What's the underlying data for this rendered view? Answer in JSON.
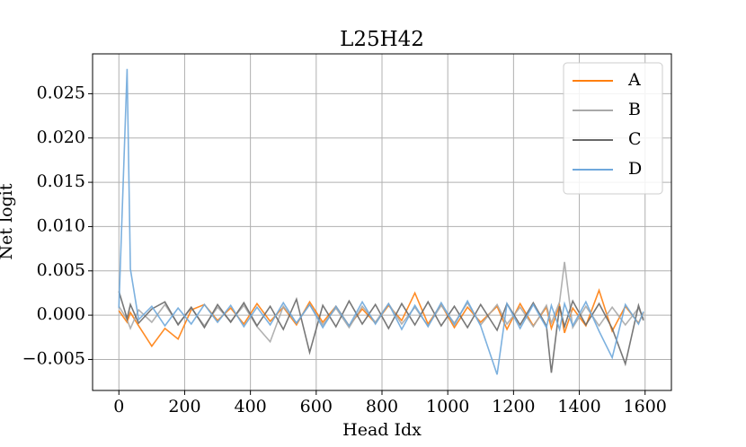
{
  "chart_data": {
    "type": "line",
    "title": "L25H42",
    "x_label": "Head Idx",
    "y_label": "Net logit",
    "x": [
      0,
      25,
      35,
      60,
      100,
      140,
      180,
      220,
      260,
      300,
      340,
      380,
      420,
      460,
      500,
      540,
      580,
      620,
      660,
      700,
      740,
      780,
      820,
      860,
      900,
      940,
      980,
      1020,
      1060,
      1100,
      1150,
      1180,
      1220,
      1260,
      1300,
      1315,
      1340,
      1355,
      1380,
      1420,
      1460,
      1500,
      1540,
      1580,
      1595
    ],
    "series": [
      {
        "name": "A",
        "color": "#ff7f0e",
        "values": [
          0.0005,
          -0.0008,
          0.0003,
          -0.0012,
          -0.0035,
          -0.0015,
          -0.0027,
          0.0006,
          0.0012,
          -0.0006,
          0.0008,
          -0.001,
          0.0013,
          -0.0007,
          0.0009,
          -0.0011,
          0.0015,
          -0.0008,
          0.001,
          -0.0012,
          0.0007,
          -0.0009,
          0.0011,
          -0.0006,
          0.0025,
          -0.001,
          0.0012,
          -0.0014,
          0.0009,
          -0.0008,
          0.001,
          -0.0016,
          0.0013,
          -0.0012,
          0.0009,
          -0.0015,
          0.0011,
          -0.002,
          0.0008,
          -0.0012,
          0.0028,
          -0.0018,
          0.001,
          -0.0009,
          0.0003
        ]
      },
      {
        "name": "B",
        "color": "#a9a9a9",
        "values": [
          0.001,
          -0.0005,
          -0.0015,
          0.0006,
          -0.0008,
          0.0012,
          -0.001,
          0.0008,
          -0.0012,
          0.0009,
          -0.0007,
          0.0011,
          -0.0013,
          -0.003,
          0.001,
          -0.0009,
          0.0012,
          -0.0011,
          0.0008,
          -0.0014,
          0.001,
          -0.0008,
          0.0013,
          -0.001,
          0.0009,
          -0.0012,
          0.0011,
          -0.0009,
          0.0014,
          -0.0011,
          0.0012,
          -0.001,
          0.0009,
          -0.0013,
          0.0011,
          -0.0009,
          0.0015,
          0.006,
          -0.0014,
          0.001,
          -0.0012,
          0.0009,
          -0.0011,
          0.0008,
          -0.0004
        ]
      },
      {
        "name": "C",
        "color": "#696969",
        "values": [
          0.0027,
          -0.0004,
          0.0012,
          -0.0009,
          0.0007,
          0.0015,
          -0.0011,
          0.0009,
          -0.0014,
          0.0012,
          -0.0008,
          0.0014,
          -0.0012,
          0.001,
          -0.0016,
          0.0018,
          -0.0042,
          0.0011,
          -0.0013,
          0.0016,
          -0.001,
          0.0012,
          -0.0015,
          0.0013,
          -0.0011,
          0.0015,
          -0.0012,
          0.001,
          -0.0014,
          0.0012,
          -0.0017,
          0.0013,
          -0.0011,
          0.0014,
          -0.0012,
          -0.0065,
          0.001,
          -0.0013,
          0.0016,
          -0.0011,
          0.0013,
          -0.0015,
          -0.0055,
          0.0011,
          -0.0006
        ]
      },
      {
        "name": "D",
        "color": "#6fa8dc",
        "values": [
          0.0008,
          0.0278,
          0.0052,
          -0.0005,
          0.001,
          -0.0012,
          0.0008,
          -0.001,
          0.0012,
          -0.0008,
          0.0011,
          -0.0013,
          0.0009,
          -0.0011,
          0.0014,
          -0.0009,
          0.0012,
          -0.0014,
          0.001,
          -0.0012,
          0.0015,
          -0.001,
          0.0013,
          -0.0016,
          0.0011,
          -0.0013,
          0.0014,
          -0.0011,
          0.0016,
          -0.0012,
          -0.0067,
          0.0013,
          -0.0015,
          0.0012,
          -0.0014,
          0.0011,
          -0.0016,
          0.0013,
          -0.0012,
          0.0015,
          -0.0018,
          -0.0048,
          0.0012,
          -0.001,
          0.0004
        ]
      }
    ],
    "xlim": [
      -80,
      1680
    ],
    "xticks": [
      0,
      200,
      400,
      600,
      800,
      1000,
      1200,
      1400,
      1600
    ],
    "ylim": [
      -0.0085,
      0.0295
    ],
    "yticks": [
      {
        "value": -0.005,
        "label": "−0.005"
      },
      {
        "value": 0,
        "label": "0.000"
      },
      {
        "value": 0.005,
        "label": "0.005"
      },
      {
        "value": 0.01,
        "label": "0.010"
      },
      {
        "value": 0.015,
        "label": "0.015"
      },
      {
        "value": 0.02,
        "label": "0.020"
      },
      {
        "value": 0.025,
        "label": "0.025"
      }
    ],
    "grid": true,
    "legend": "upper right"
  }
}
